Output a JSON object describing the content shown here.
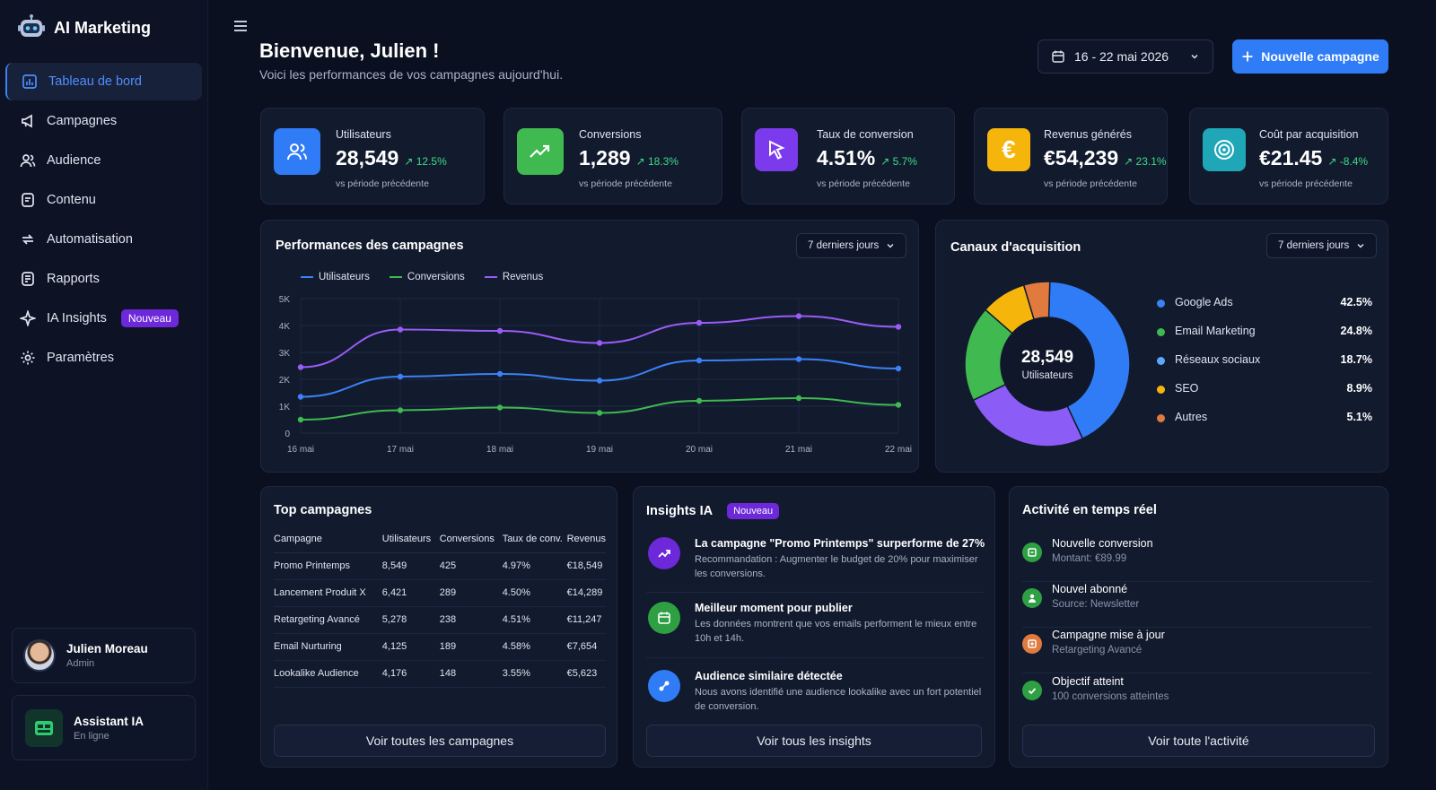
{
  "app": {
    "name": "AI Marketing"
  },
  "nav": [
    {
      "label": "Tableau de bord",
      "icon": "dashboard-icon",
      "active": true
    },
    {
      "label": "Campagnes",
      "icon": "megaphone-icon"
    },
    {
      "label": "Audience",
      "icon": "users-icon"
    },
    {
      "label": "Contenu",
      "icon": "document-icon"
    },
    {
      "label": "Automatisation",
      "icon": "automation-icon"
    },
    {
      "label": "Rapports",
      "icon": "report-icon"
    },
    {
      "label": "IA Insights",
      "icon": "sparkle-icon",
      "badge": "Nouveau"
    },
    {
      "label": "Paramètres",
      "icon": "gear-icon"
    }
  ],
  "user": {
    "name": "Julien Moreau",
    "role": "Admin"
  },
  "assistant": {
    "name": "Assistant IA",
    "status": "En ligne"
  },
  "header": {
    "title": "Bienvenue, Julien !",
    "subtitle": "Voici les performances de vos campagnes aujourd'hui.",
    "date_range": "16 - 22 mai 2026",
    "new_campaign": "Nouvelle campagne"
  },
  "kpis": [
    {
      "label": "Utilisateurs",
      "value": "28,549",
      "change": "↗ 12.5%",
      "vs": "vs période précédente",
      "color": "#2f7cf6",
      "icon": "users-icon"
    },
    {
      "label": "Conversions",
      "value": "1,289",
      "change": "↗ 18.3%",
      "vs": "vs période précédente",
      "color": "#3fb950",
      "icon": "trend-up-icon"
    },
    {
      "label": "Taux de conversion",
      "value": "4.51%",
      "change": "↗ 5.7%",
      "vs": "vs période précédente",
      "color": "#7c3aed",
      "icon": "cursor-icon"
    },
    {
      "label": "Revenus générés",
      "value": "€54,239",
      "change": "↗ 23.1%",
      "vs": "vs période précédente",
      "color": "#f5b50a",
      "icon": "euro-icon"
    },
    {
      "label": "Coût par acquisition",
      "value": "€21.45",
      "change": "↗ -8.4%",
      "vs": "vs période précédente",
      "color": "#1fa7b8",
      "icon": "target-icon"
    }
  ],
  "performance": {
    "title": "Performances des campagnes",
    "range": "7 derniers jours",
    "chart_data": {
      "type": "line",
      "categories": [
        "16 mai",
        "17 mai",
        "18 mai",
        "19 mai",
        "20 mai",
        "21 mai",
        "22 mai"
      ],
      "yticks": [
        "0",
        "1K",
        "2K",
        "3K",
        "4K",
        "5K"
      ],
      "ylim": [
        0,
        5000
      ],
      "grid": true,
      "legend": "top-left",
      "series": [
        {
          "name": "Utilisateurs",
          "color": "#3b82f6",
          "values": [
            1350,
            2100,
            2200,
            1950,
            2700,
            2750,
            2400
          ]
        },
        {
          "name": "Conversions",
          "color": "#3fb950",
          "values": [
            500,
            850,
            950,
            750,
            1200,
            1300,
            1050
          ]
        },
        {
          "name": "Revenus",
          "color": "#9b5cf6",
          "values": [
            2450,
            3850,
            3800,
            3350,
            4100,
            4350,
            3950
          ]
        }
      ]
    }
  },
  "acquisition": {
    "title": "Canaux d'acquisition",
    "range": "7 derniers jours",
    "center_value": "28,549",
    "center_label": "Utilisateurs",
    "chart_data": {
      "type": "pie",
      "slices": [
        {
          "name": "Google Ads",
          "value": 42.5,
          "label": "42.5%",
          "color": "#2f7cf6"
        },
        {
          "name": "Email Marketing",
          "value": 24.8,
          "label": "24.8%",
          "color": "#8b5cf6"
        },
        {
          "name": "Réseaux sociaux",
          "value": 18.7,
          "label": "18.7%",
          "color": "#3fb950"
        },
        {
          "name": "SEO",
          "value": 8.9,
          "label": "8.9%",
          "color": "#f5b50a"
        },
        {
          "name": "Autres",
          "value": 5.1,
          "label": "5.1%",
          "color": "#e07a3f"
        }
      ]
    }
  },
  "legend_colors": [
    "#3b82f6",
    "#3fb950",
    "#60a5fa",
    "#f5b50a",
    "#e07a3f"
  ],
  "top": {
    "title": "Top campagnes",
    "columns": [
      "Campagne",
      "Utilisateurs",
      "Conversions",
      "Taux de conv.",
      "Revenus"
    ],
    "rows": [
      [
        "Promo Printemps",
        "8,549",
        "425",
        "4.97%",
        "€18,549"
      ],
      [
        "Lancement Produit X",
        "6,421",
        "289",
        "4.50%",
        "€14,289"
      ],
      [
        "Retargeting Avancé",
        "5,278",
        "238",
        "4.51%",
        "€11,247"
      ],
      [
        "Email Nurturing",
        "4,125",
        "189",
        "4.58%",
        "€7,654"
      ],
      [
        "Lookalike Audience",
        "4,176",
        "148",
        "3.55%",
        "€5,623"
      ]
    ],
    "button": "Voir toutes les campagnes"
  },
  "insights": {
    "title": "Insights IA",
    "badge": "Nouveau",
    "items": [
      {
        "title": "La campagne \"Promo Printemps\" surperforme de 27%",
        "desc": "Recommandation : Augmenter le budget de 20% pour maximiser les conversions.",
        "color": "#6d28d9",
        "icon": "trend-up-icon"
      },
      {
        "title": "Meilleur moment pour publier",
        "desc": "Les données montrent que vos emails performent le mieux entre 10h et 14h.",
        "color": "#2ea043",
        "icon": "calendar-icon"
      },
      {
        "title": "Audience similaire détectée",
        "desc": "Nous avons identifié une audience lookalike avec un fort potentiel de conversion.",
        "color": "#2f7cf6",
        "icon": "link-icon"
      }
    ],
    "button": "Voir tous les insights"
  },
  "activity": {
    "title": "Activité en temps réel",
    "items": [
      {
        "title": "Nouvelle conversion",
        "desc": "Montant: €89.99",
        "color": "#2ea043",
        "icon": "cart-icon"
      },
      {
        "title": "Nouvel abonné",
        "desc": "Source: Newsletter",
        "color": "#2ea043",
        "icon": "user-icon"
      },
      {
        "title": "Campagne mise à jour",
        "desc": "Retargeting Avancé",
        "color": "#e07a3f",
        "icon": "edit-icon"
      },
      {
        "title": "Objectif atteint",
        "desc": "100 conversions atteintes",
        "color": "#2ea043",
        "icon": "check-icon"
      }
    ],
    "button": "Voir toute l'activité"
  }
}
